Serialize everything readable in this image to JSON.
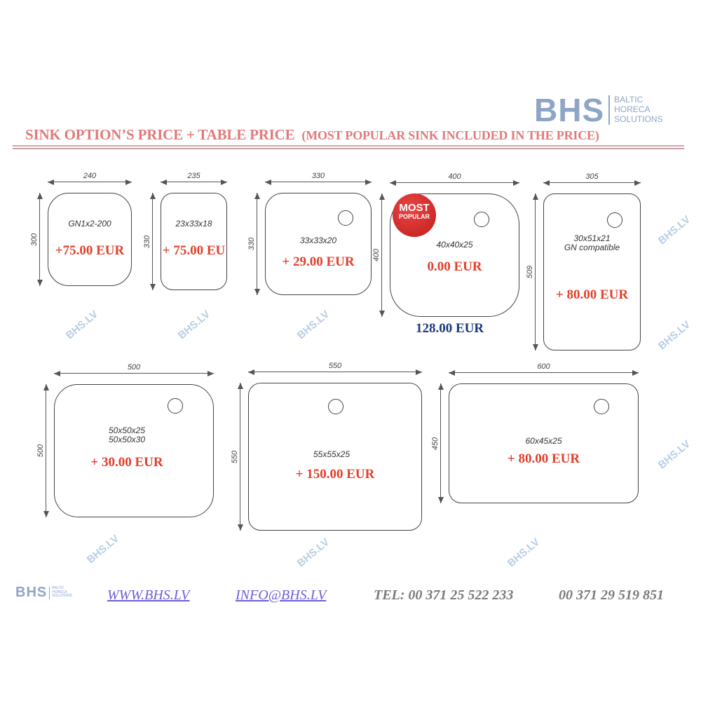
{
  "logo": {
    "brand": "BHS",
    "line1": "BALTIC",
    "line2": "HORECA",
    "line3": "SOLUTIONS",
    "color": "#8ea5c6"
  },
  "title": {
    "main": "SINK OPTION’S PRICE + TABLE PRICE",
    "sub": "(MOST POPULAR SINK INCLUDED IN THE PRICE)",
    "color": "#e07a7a"
  },
  "sinks": [
    {
      "width": "240",
      "height": "300",
      "model": "GN1x2-200",
      "price": "+75.00 EUR"
    },
    {
      "width": "235",
      "height": "330",
      "model": "23x33x18",
      "price": "+ 75.00 EU"
    },
    {
      "width": "330",
      "height": "330",
      "model": "33x33x20",
      "price": "+ 29.00 EUR"
    },
    {
      "width": "400",
      "height": "400",
      "model": "40x40x25",
      "price": "0.00 EUR",
      "badge_line1": "MOST",
      "badge_line2": "POPULAR",
      "total": "128.00 EUR"
    },
    {
      "width": "305",
      "height": "509",
      "model": "30x51x21",
      "model2": "GN compatible",
      "price": "+ 80.00 EUR"
    },
    {
      "width": "500",
      "height": "500",
      "model": "50x50x25",
      "model2": "50x50x30",
      "price": "+ 30.00 EUR"
    },
    {
      "width": "550",
      "height": "550",
      "model": "55x55x25",
      "price": "+ 150.00 EUR"
    },
    {
      "width": "600",
      "height": "450",
      "model": "60x45x25",
      "price": "+ 80.00 EUR"
    }
  ],
  "watermark": "BHS.LV",
  "colors": {
    "price": "#e2402c",
    "total": "#1c3a78",
    "link": "#6b5fd6"
  },
  "footer": {
    "website": "WWW.BHS.LV",
    "email": "INFO@BHS.LV",
    "tel1": "TEL: 00 371  25 522 233",
    "tel2": "00 371 29 519 851"
  }
}
